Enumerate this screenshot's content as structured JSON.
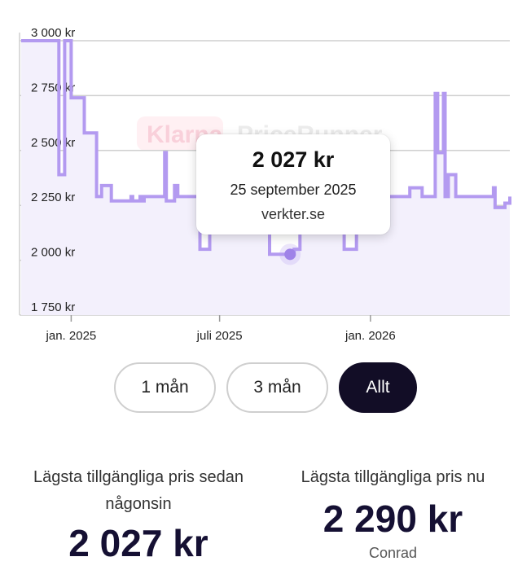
{
  "chart_data": {
    "type": "line",
    "title": "",
    "xlabel": "",
    "ylabel": "",
    "ylim": [
      1700,
      3000
    ],
    "xlim": [
      "2024-11-01",
      "2026-06-20"
    ],
    "y_ticks": [
      {
        "value": 3000,
        "label": "3 000 kr"
      },
      {
        "value": 2750,
        "label": "2 750 kr"
      },
      {
        "value": 2500,
        "label": "2 500 kr"
      },
      {
        "value": 2250,
        "label": "2 250 kr"
      },
      {
        "value": 2000,
        "label": "2 000 kr"
      },
      {
        "value": 1750,
        "label": "1 750 kr"
      }
    ],
    "x_ticks": [
      {
        "value": "2025-01-01",
        "label": "jan. 2025"
      },
      {
        "value": "2025-07-01",
        "label": "juli 2025"
      },
      {
        "value": "2026-01-01",
        "label": "jan. 2026"
      }
    ],
    "grid": true,
    "line_color": "#b39af0",
    "fill_color": "#f3f0fc",
    "series": [
      {
        "step": true,
        "points": [
          [
            "2024-11-01",
            3000
          ],
          [
            "2024-12-17",
            2390
          ],
          [
            "2024-12-24",
            3000
          ],
          [
            "2025-01-01",
            2740
          ],
          [
            "2025-01-17",
            2580
          ],
          [
            "2025-02-01",
            2290
          ],
          [
            "2025-02-07",
            2340
          ],
          [
            "2025-02-19",
            2270
          ],
          [
            "2025-03-15",
            2290
          ],
          [
            "2025-03-17",
            2270
          ],
          [
            "2025-03-26",
            2290
          ],
          [
            "2025-03-28",
            2270
          ],
          [
            "2025-03-31",
            2290
          ],
          [
            "2025-04-25",
            2490
          ],
          [
            "2025-04-27",
            2270
          ],
          [
            "2025-05-07",
            2340
          ],
          [
            "2025-05-11",
            2290
          ],
          [
            "2025-06-07",
            2050
          ],
          [
            "2025-06-19",
            2290
          ],
          [
            "2025-08-31",
            2027
          ],
          [
            "2025-09-30",
            2050
          ],
          [
            "2025-10-07",
            2290
          ],
          [
            "2025-11-30",
            2050
          ],
          [
            "2025-12-15",
            2290
          ],
          [
            "2026-02-18",
            2330
          ],
          [
            "2026-03-05",
            2290
          ],
          [
            "2026-03-21",
            2760
          ],
          [
            "2026-03-24",
            2490
          ],
          [
            "2026-03-31",
            2760
          ],
          [
            "2026-04-02",
            2290
          ],
          [
            "2026-04-06",
            2390
          ],
          [
            "2026-04-15",
            2290
          ],
          [
            "2026-05-31",
            2330
          ],
          [
            "2026-06-02",
            2240
          ],
          [
            "2026-06-14",
            2260
          ],
          [
            "2026-06-20",
            2290
          ]
        ]
      }
    ],
    "highlight": {
      "x": "2025-09-25",
      "y": 2027
    }
  },
  "watermark": {
    "part1": "Klarna.",
    "part2": "PriceRunner"
  },
  "tooltip": {
    "price": "2 027 kr",
    "date": "25 september 2025",
    "store": "verkter.se"
  },
  "range_buttons": [
    {
      "label": "1 mån",
      "active": false
    },
    {
      "label": "3 mån",
      "active": false
    },
    {
      "label": "Allt",
      "active": true
    }
  ],
  "stats": {
    "lowest_ever": {
      "label": "Lägsta tillgängliga pris sedan någonsin",
      "value": "2 027 kr"
    },
    "lowest_now": {
      "label": "Lägsta tillgängliga pris nu",
      "value": "2 290 kr",
      "store": "Conrad"
    }
  }
}
